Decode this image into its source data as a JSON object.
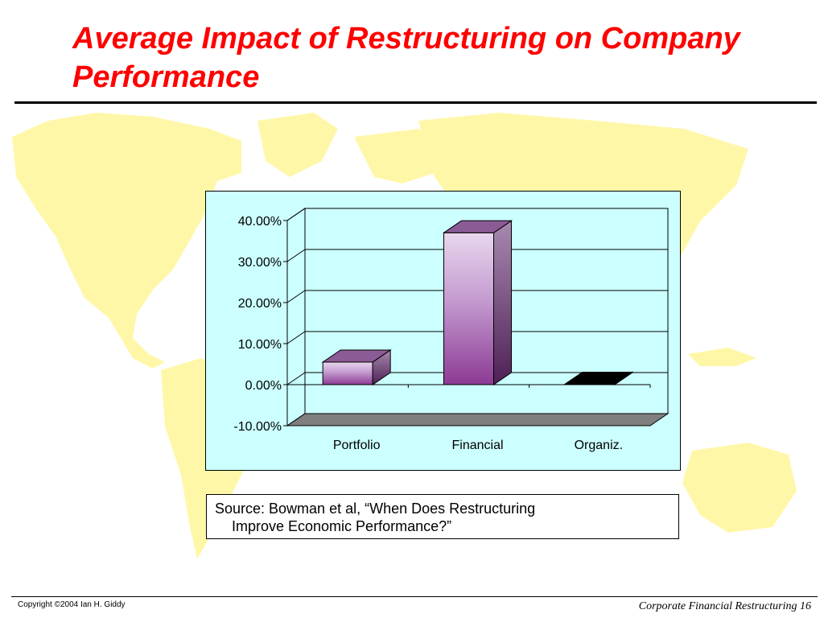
{
  "slide": {
    "title": "Average Impact of Restructuring on Company Performance",
    "footer_left": "Copyright ©2004 Ian H. Giddy",
    "footer_right": "Corporate Financial Restructuring 16",
    "source_line1": "Source: Bowman et al, “When Does Restructuring",
    "source_line2": "Improve Economic Performance?”"
  },
  "colors": {
    "title": "#ff0000",
    "chart_background": "#ccffff",
    "map": "#fff7a8",
    "bar_light": "#e8d7ee",
    "bar_dark": "#8c3a93",
    "floor": "#7f7f7f"
  },
  "chart_data": {
    "type": "bar",
    "style": "3d-column",
    "categories": [
      "Portfolio",
      "Financial",
      "Organiz."
    ],
    "values": [
      0.055,
      0.37,
      0.001
    ],
    "ylim": [
      -0.1,
      0.4
    ],
    "yticks": [
      0.4,
      0.3,
      0.2,
      0.1,
      0.0,
      -0.1
    ],
    "ytick_labels": [
      "40.00%",
      "30.00%",
      "20.00%",
      "10.00%",
      "0.00%",
      "-10.00%"
    ],
    "grid": true,
    "legend": false,
    "title": "",
    "xlabel": "",
    "ylabel": ""
  }
}
